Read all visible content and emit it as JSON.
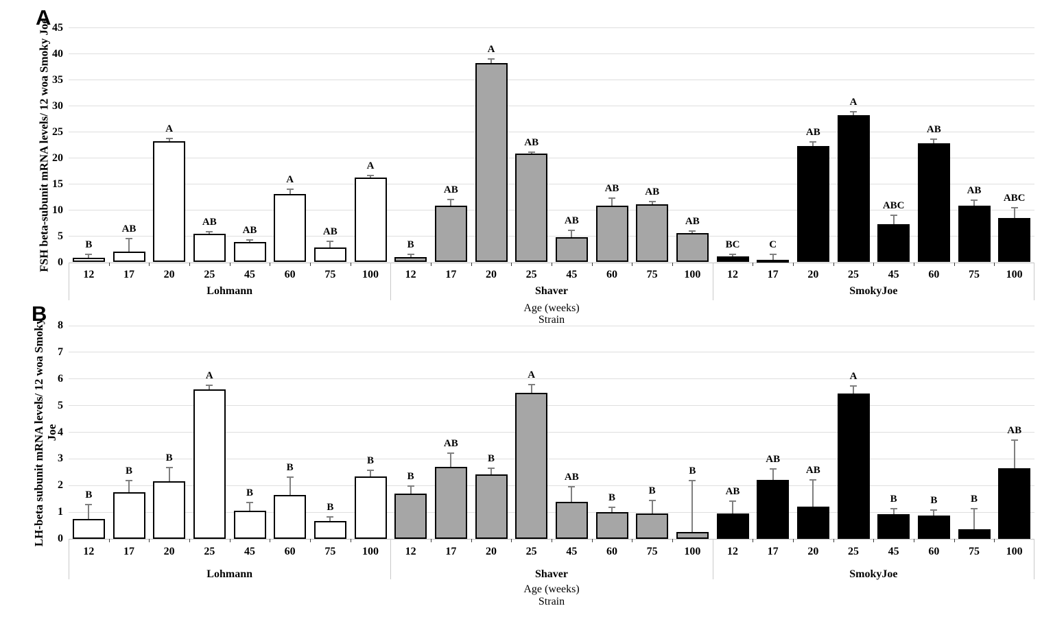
{
  "figure": {
    "background": "#ffffff",
    "panel_letters": [
      "A",
      "B"
    ]
  },
  "style": {
    "grid_color": "#dedede",
    "axis_color": "#bfbfbf",
    "bar_border_color": "#000000",
    "error_bar_color": "#7f7f7f",
    "text_color": "#000000",
    "group_fills": [
      "#ffffff",
      "#a6a6a6",
      "#000000"
    ]
  },
  "chart_data": [
    {
      "type": "bar",
      "panel": "A",
      "title": "",
      "ylabel": "FSH beta-subunit mRNA levels/ 12 woa Smoky Joe",
      "ylabel_lines": [
        "FSH beta-subunit mRNA levels/ 12 woa Smoky Joe"
      ],
      "xlabel_lines": [
        "Age (weeks)",
        "Strain"
      ],
      "ylim": [
        0,
        45
      ],
      "ytick_step": 5,
      "grid": true,
      "legend": "none",
      "categories": [
        "12",
        "17",
        "20",
        "25",
        "45",
        "60",
        "75",
        "100"
      ],
      "groups": [
        {
          "name": "Lohmann",
          "fill": "#ffffff",
          "values": [
            0.8,
            2.1,
            23.2,
            5.4,
            3.9,
            13.1,
            2.8,
            16.3
          ],
          "errors_plus": [
            0.9,
            2.6,
            0.7,
            0.6,
            0.5,
            1.0,
            1.3,
            0.5
          ],
          "letters": [
            "B",
            "AB",
            "A",
            "AB",
            "AB",
            "A",
            "AB",
            "A"
          ]
        },
        {
          "name": "Shaver",
          "fill": "#a6a6a6",
          "values": [
            1.0,
            10.9,
            38.2,
            20.9,
            4.8,
            10.9,
            11.1,
            5.6
          ],
          "errors_plus": [
            0.7,
            1.3,
            0.9,
            0.3,
            1.5,
            1.6,
            0.7,
            0.5
          ],
          "letters": [
            "B",
            "AB",
            "A",
            "AB",
            "AB",
            "AB",
            "AB",
            "AB"
          ]
        },
        {
          "name": "SmokyJoe",
          "fill": "#000000",
          "values": [
            1.1,
            0.5,
            22.3,
            28.2,
            7.3,
            22.8,
            10.9,
            8.5
          ],
          "errors_plus": [
            0.6,
            1.2,
            0.9,
            0.8,
            1.9,
            0.9,
            1.2,
            2.1
          ],
          "letters": [
            "BC",
            "C",
            "AB",
            "A",
            "ABC",
            "AB",
            "AB",
            "ABC"
          ]
        }
      ]
    },
    {
      "type": "bar",
      "panel": "B",
      "title": "",
      "ylabel": "LH-beta subunit mRNA levels/ 12 woa Smoky Joe",
      "ylabel_lines": [
        "LH-beta subunit mRNA levels/ 12 woa Smoky",
        "Joe"
      ],
      "xlabel_lines": [
        "Age (weeks)",
        "Strain"
      ],
      "ylim": [
        0,
        8
      ],
      "ytick_step": 1,
      "grid": true,
      "legend": "none",
      "categories": [
        "12",
        "17",
        "20",
        "25",
        "45",
        "60",
        "75",
        "100"
      ],
      "groups": [
        {
          "name": "Lohmann",
          "fill": "#ffffff",
          "values": [
            0.75,
            1.75,
            2.15,
            5.6,
            1.05,
            1.65,
            0.68,
            2.35
          ],
          "errors_plus": [
            0.55,
            0.45,
            0.55,
            0.2,
            0.33,
            0.68,
            0.18,
            0.26
          ],
          "letters": [
            "B",
            "B",
            "B",
            "A",
            "B",
            "B",
            "B",
            "B"
          ]
        },
        {
          "name": "Shaver",
          "fill": "#a6a6a6",
          "values": [
            1.7,
            2.7,
            2.42,
            5.48,
            1.4,
            1.0,
            0.95,
            0.25
          ],
          "errors_plus": [
            0.3,
            0.55,
            0.25,
            0.33,
            0.58,
            0.2,
            0.52,
            1.95
          ],
          "letters": [
            "B",
            "AB",
            "B",
            "A",
            "AB",
            "B",
            "B",
            "B"
          ]
        },
        {
          "name": "SmokyJoe",
          "fill": "#000000",
          "values": [
            0.95,
            2.2,
            1.2,
            5.45,
            0.93,
            0.87,
            0.35,
            2.65
          ],
          "errors_plus": [
            0.5,
            0.45,
            1.05,
            0.3,
            0.23,
            0.24,
            0.8,
            1.08
          ],
          "letters": [
            "AB",
            "AB",
            "AB",
            "A",
            "B",
            "B",
            "B",
            "AB"
          ]
        }
      ]
    }
  ]
}
